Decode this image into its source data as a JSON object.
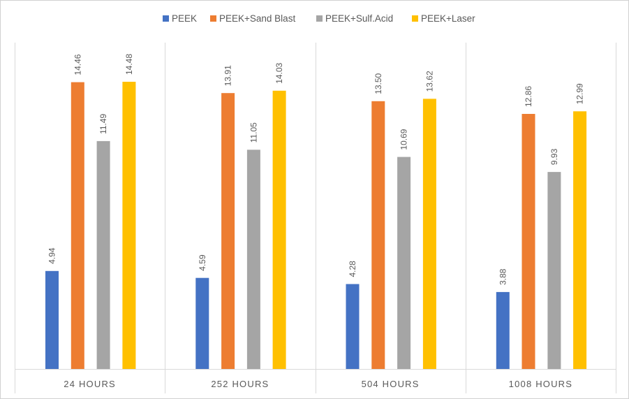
{
  "chart_data": {
    "type": "bar",
    "categories": [
      "24 HOURS",
      "252 HOURS",
      "504 HOURS",
      "1008 HOURS"
    ],
    "series": [
      {
        "name": "PEEK",
        "color": "#4472C4",
        "values": [
          4.94,
          4.59,
          4.28,
          3.88
        ],
        "labels": [
          "4.94",
          "4.59",
          "4.28",
          "3.88"
        ]
      },
      {
        "name": "PEEK+Sand Blast",
        "color": "#ED7D31",
        "values": [
          14.46,
          13.91,
          13.5,
          12.86
        ],
        "labels": [
          "14.46",
          "13.91",
          "13.50",
          "12.86"
        ]
      },
      {
        "name": "PEEK+Sulf.Acid",
        "color": "#A5A5A5",
        "values": [
          11.49,
          11.05,
          10.69,
          9.93
        ],
        "labels": [
          "11.49",
          "11.05",
          "10.69",
          "9.93"
        ]
      },
      {
        "name": "PEEK+Laser",
        "color": "#FFC000",
        "values": [
          14.48,
          14.03,
          13.62,
          12.99
        ],
        "labels": [
          "14.48",
          "14.03",
          "13.62",
          "12.99"
        ]
      }
    ],
    "ylim": [
      0,
      16.1
    ],
    "legend": "top-center",
    "grid": "vertical category separators",
    "data_label_orientation": "rotated"
  }
}
